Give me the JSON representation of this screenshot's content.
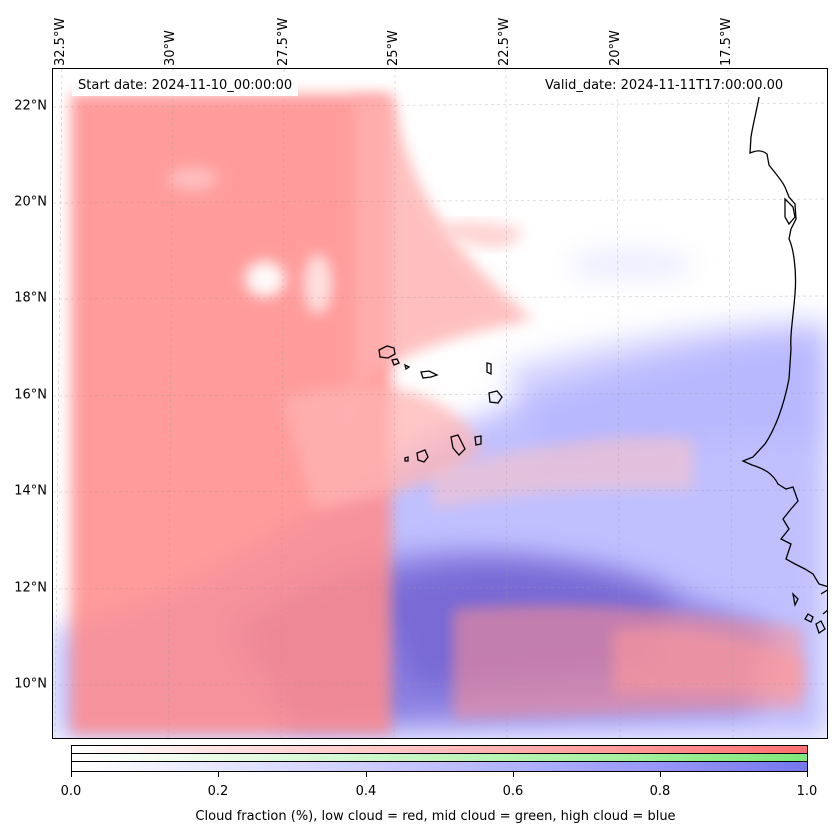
{
  "map": {
    "start_date": "Start date: 2024-11-10_00:00:00",
    "valid_date": "Valid_date: 2024-11-11T17:00:00.00",
    "longitude_labels": [
      "32.5°W",
      "30°W",
      "27.5°W",
      "25°W",
      "22.5°W",
      "20°W",
      "17.5°W"
    ],
    "latitude_labels": [
      "22°N",
      "20°N",
      "18°N",
      "16°N",
      "14°N",
      "12°N",
      "10°N"
    ],
    "extent": {
      "lon_min": -32.8,
      "lon_max": -15.2,
      "lat_min": 8.9,
      "lat_max": 22.7
    },
    "layers": [
      "low cloud",
      "mid cloud",
      "high cloud"
    ],
    "colors": {
      "low_cloud": "#ff7a7a",
      "mid_cloud": "#8ff08a",
      "high_cloud": "#7a7aff",
      "coastline": "#000000"
    }
  },
  "colorbar": {
    "ticks": [
      "0.0",
      "0.2",
      "0.4",
      "0.6",
      "0.8",
      "1.0"
    ],
    "tick_values": [
      0.0,
      0.2,
      0.4,
      0.6,
      0.8,
      1.0
    ],
    "label": "Cloud fraction (%), low cloud = red, mid cloud = green, high cloud = blue"
  }
}
